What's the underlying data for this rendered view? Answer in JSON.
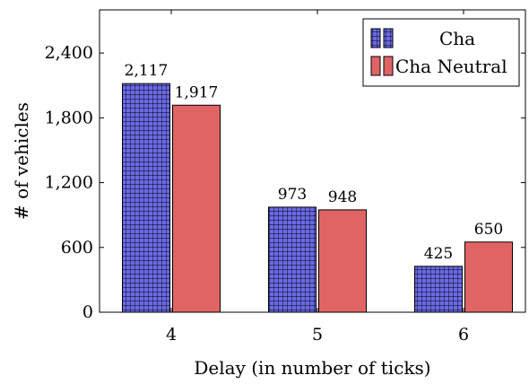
{
  "chart_data": {
    "type": "bar",
    "title": "",
    "xlabel": "Delay (in number of ticks)",
    "ylabel": "# of vehicles",
    "categories": [
      "4",
      "5",
      "6"
    ],
    "ylim": [
      0,
      2800
    ],
    "yticks": [
      0,
      600,
      1200,
      1800,
      2400
    ],
    "ytick_labels": [
      "0",
      "600",
      "1,200",
      "1,800",
      "2,400"
    ],
    "series": [
      {
        "name": "Cha",
        "values": [
          2117,
          973,
          425
        ],
        "labels": [
          "2,117",
          "973",
          "425"
        ],
        "color": "#6a6ae6",
        "pattern": "grid"
      },
      {
        "name": "Cha Neutral",
        "values": [
          1917,
          948,
          650
        ],
        "labels": [
          "1,917",
          "948",
          "650"
        ],
        "color": "#e06464",
        "pattern": "solid"
      }
    ],
    "legend_position": "top-right",
    "grid": false
  }
}
